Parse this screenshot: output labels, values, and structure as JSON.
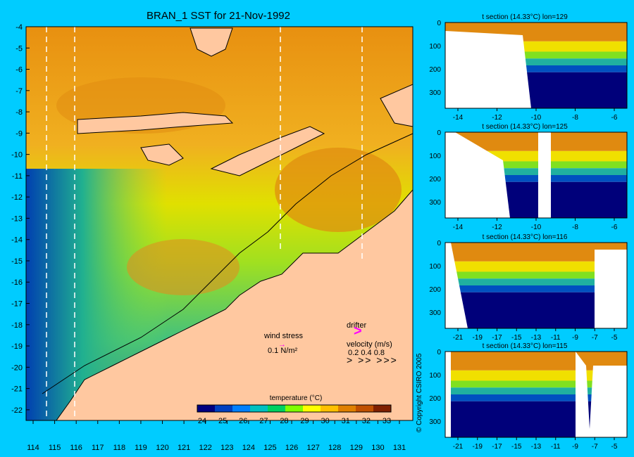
{
  "map": {
    "title": "BRAN_1 SST for 21-Nov-1992",
    "lat_ticks": [
      "-4",
      "-5",
      "-6",
      "-7",
      "-8",
      "-9",
      "-10",
      "-11",
      "-12",
      "-13",
      "-14",
      "-15",
      "-16",
      "-17",
      "-18",
      "-19",
      "-20",
      "-21",
      "-22"
    ],
    "lon_ticks": [
      "114",
      "115",
      "116",
      "117",
      "118",
      "119",
      "120",
      "121",
      "122",
      "123",
      "124",
      "125",
      "126",
      "127",
      "128",
      "129",
      "130",
      "131"
    ],
    "colorbar": {
      "label": "temperature (°C)",
      "ticks": [
        "24",
        "25",
        "26",
        "27",
        "28",
        "29",
        "30",
        "31",
        "32",
        "33"
      ],
      "colors": [
        "#000080",
        "#0040c0",
        "#0080ff",
        "#00c0c0",
        "#00d060",
        "#80ff00",
        "#ffff00",
        "#ffc000",
        "#e08000",
        "#c05000",
        "#802000"
      ]
    },
    "legend": {
      "wind_stress_label": "wind stress",
      "wind_stress_value": "0.1 N/m²",
      "drifter_label": "drifter",
      "velocity_label": "velocity (m/s)",
      "velocity_values": "0.2 0.4 0.8"
    }
  },
  "sections": [
    {
      "title": "t section (14.33°C) lon=129",
      "x_ticks": [
        "-14",
        "-12",
        "-10",
        "-8",
        "-6"
      ],
      "y_ticks": [
        "0",
        "100",
        "200",
        "300"
      ]
    },
    {
      "title": "t section (14.33°C) lon=125",
      "x_ticks": [
        "-14",
        "-12",
        "-10",
        "-8",
        "-6"
      ],
      "y_ticks": [
        "0",
        "100",
        "200",
        "300"
      ]
    },
    {
      "title": "t section (14.33°C) lon=116",
      "x_ticks": [
        "-21",
        "-19",
        "-17",
        "-15",
        "-13",
        "-11",
        "-9",
        "-7",
        "-5"
      ],
      "y_ticks": [
        "0",
        "100",
        "200",
        "300"
      ]
    },
    {
      "title": "t section (14.33°C) lon=115",
      "x_ticks": [
        "-21",
        "-19",
        "-17",
        "-15",
        "-13",
        "-11",
        "-9",
        "-7",
        "-5"
      ],
      "y_ticks": [
        "0",
        "100",
        "200",
        "300"
      ]
    }
  ],
  "copyright": "© Copyright CSIRO 2005",
  "colors": {
    "background": "#00ccff",
    "land": "#ffc8a0",
    "warm": "#e08a10",
    "yellow": "#f0e000",
    "green": "#80e020",
    "teal": "#20b0a0",
    "blue": "#0050c0",
    "navy": "#00007a"
  }
}
